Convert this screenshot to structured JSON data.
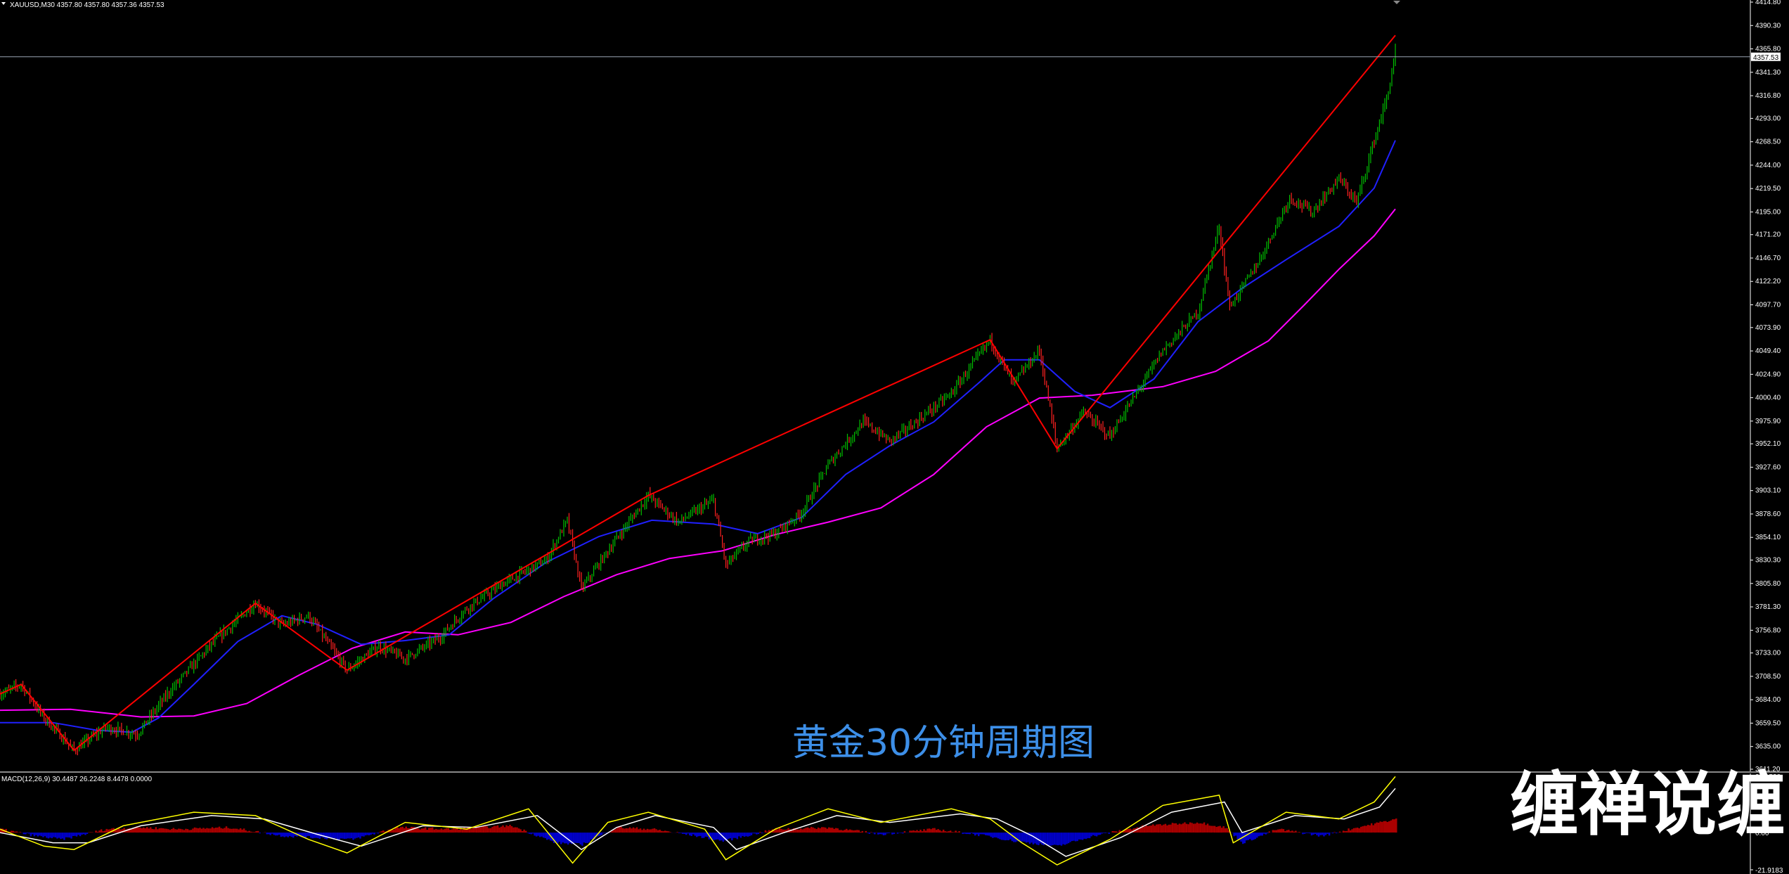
{
  "header": {
    "symbol_info": "XAUUSD,M30  4357.80 4357.80 4357.36 4357.53",
    "caption": "黄金30分钟周期图",
    "watermark": "缠禅说缠"
  },
  "colors": {
    "background": "#000000",
    "bull_candle": "#00c000",
    "bear_candle": "#ff2020",
    "ma_fast": "#2020ff",
    "ma_slow": "#ff00ff",
    "zigzag": "#ff0000",
    "macd_line": "#ffff00",
    "macd_signal": "#ffffff",
    "hist_positive": "#aa0000",
    "hist_negative": "#0000c8",
    "caption_text": "#3d8fe8"
  },
  "chart_data": [
    {
      "type": "line",
      "panel": "price",
      "ylim": [
        3611.2,
        4414.8
      ],
      "yticks": [
        "4414.80",
        "4390.30",
        "4365.80",
        "4341.30",
        "4316.80",
        "4293.00",
        "4268.50",
        "4244.00",
        "4219.50",
        "4195.00",
        "4171.20",
        "4146.70",
        "4122.20",
        "4097.70",
        "4073.90",
        "4049.40",
        "4024.90",
        "4000.40",
        "3975.90",
        "3952.10",
        "3927.60",
        "3903.10",
        "3878.60",
        "3854.10",
        "3830.30",
        "3805.80",
        "3781.30",
        "3756.80",
        "3733.00",
        "3708.50",
        "3684.00",
        "3659.50",
        "3635.00",
        "3611.20"
      ],
      "current_price": "4357.53",
      "current_value": 4357.53,
      "grid": false,
      "x_bars": 1000,
      "zigzag": [
        {
          "x": 0,
          "y": 3690
        },
        {
          "x": 12,
          "y": 3700
        },
        {
          "x": 42,
          "y": 3631
        },
        {
          "x": 145,
          "y": 3785
        },
        {
          "x": 197,
          "y": 3715
        },
        {
          "x": 368,
          "y": 3898
        },
        {
          "x": 562,
          "y": 4061
        },
        {
          "x": 600,
          "y": 3947
        },
        {
          "x": 792,
          "y": 4380
        }
      ],
      "ma_fast": [
        {
          "x": 0,
          "y": 3660
        },
        {
          "x": 30,
          "y": 3660
        },
        {
          "x": 55,
          "y": 3652
        },
        {
          "x": 75,
          "y": 3650
        },
        {
          "x": 90,
          "y": 3665
        },
        {
          "x": 110,
          "y": 3700
        },
        {
          "x": 135,
          "y": 3745
        },
        {
          "x": 160,
          "y": 3772
        },
        {
          "x": 180,
          "y": 3763
        },
        {
          "x": 205,
          "y": 3742
        },
        {
          "x": 230,
          "y": 3746
        },
        {
          "x": 255,
          "y": 3752
        },
        {
          "x": 280,
          "y": 3790
        },
        {
          "x": 310,
          "y": 3828
        },
        {
          "x": 340,
          "y": 3855
        },
        {
          "x": 370,
          "y": 3872
        },
        {
          "x": 405,
          "y": 3868
        },
        {
          "x": 430,
          "y": 3858
        },
        {
          "x": 455,
          "y": 3875
        },
        {
          "x": 480,
          "y": 3920
        },
        {
          "x": 505,
          "y": 3950
        },
        {
          "x": 530,
          "y": 3975
        },
        {
          "x": 555,
          "y": 4015
        },
        {
          "x": 570,
          "y": 4040
        },
        {
          "x": 590,
          "y": 4040
        },
        {
          "x": 610,
          "y": 4007
        },
        {
          "x": 630,
          "y": 3990
        },
        {
          "x": 655,
          "y": 4020
        },
        {
          "x": 680,
          "y": 4080
        },
        {
          "x": 705,
          "y": 4115
        },
        {
          "x": 730,
          "y": 4145
        },
        {
          "x": 760,
          "y": 4180
        },
        {
          "x": 780,
          "y": 4220
        },
        {
          "x": 792,
          "y": 4270
        }
      ],
      "ma_slow": [
        {
          "x": 0,
          "y": 3673
        },
        {
          "x": 40,
          "y": 3674
        },
        {
          "x": 80,
          "y": 3666
        },
        {
          "x": 110,
          "y": 3667
        },
        {
          "x": 140,
          "y": 3680
        },
        {
          "x": 170,
          "y": 3710
        },
        {
          "x": 200,
          "y": 3738
        },
        {
          "x": 230,
          "y": 3755
        },
        {
          "x": 260,
          "y": 3752
        },
        {
          "x": 290,
          "y": 3765
        },
        {
          "x": 320,
          "y": 3792
        },
        {
          "x": 350,
          "y": 3815
        },
        {
          "x": 380,
          "y": 3832
        },
        {
          "x": 410,
          "y": 3840
        },
        {
          "x": 440,
          "y": 3857
        },
        {
          "x": 470,
          "y": 3870
        },
        {
          "x": 500,
          "y": 3885
        },
        {
          "x": 530,
          "y": 3920
        },
        {
          "x": 560,
          "y": 3970
        },
        {
          "x": 590,
          "y": 4000
        },
        {
          "x": 620,
          "y": 4003
        },
        {
          "x": 660,
          "y": 4012
        },
        {
          "x": 690,
          "y": 4028
        },
        {
          "x": 720,
          "y": 4060
        },
        {
          "x": 740,
          "y": 4097
        },
        {
          "x": 760,
          "y": 4135
        },
        {
          "x": 780,
          "y": 4170
        },
        {
          "x": 792,
          "y": 4198
        }
      ],
      "price_path": [
        {
          "x": 0,
          "y": 3690
        },
        {
          "x": 12,
          "y": 3700
        },
        {
          "x": 25,
          "y": 3665
        },
        {
          "x": 42,
          "y": 3631
        },
        {
          "x": 60,
          "y": 3655
        },
        {
          "x": 78,
          "y": 3648
        },
        {
          "x": 95,
          "y": 3690
        },
        {
          "x": 120,
          "y": 3742
        },
        {
          "x": 145,
          "y": 3785
        },
        {
          "x": 160,
          "y": 3762
        },
        {
          "x": 175,
          "y": 3772
        },
        {
          "x": 197,
          "y": 3715
        },
        {
          "x": 215,
          "y": 3740
        },
        {
          "x": 230,
          "y": 3727
        },
        {
          "x": 250,
          "y": 3750
        },
        {
          "x": 265,
          "y": 3780
        },
        {
          "x": 285,
          "y": 3805
        },
        {
          "x": 310,
          "y": 3830
        },
        {
          "x": 322,
          "y": 3872
        },
        {
          "x": 330,
          "y": 3800
        },
        {
          "x": 345,
          "y": 3840
        },
        {
          "x": 368,
          "y": 3898
        },
        {
          "x": 385,
          "y": 3870
        },
        {
          "x": 405,
          "y": 3893
        },
        {
          "x": 412,
          "y": 3825
        },
        {
          "x": 425,
          "y": 3850
        },
        {
          "x": 440,
          "y": 3858
        },
        {
          "x": 455,
          "y": 3880
        },
        {
          "x": 470,
          "y": 3930
        },
        {
          "x": 490,
          "y": 3975
        },
        {
          "x": 505,
          "y": 3955
        },
        {
          "x": 520,
          "y": 3975
        },
        {
          "x": 540,
          "y": 4005
        },
        {
          "x": 562,
          "y": 4061
        },
        {
          "x": 575,
          "y": 4015
        },
        {
          "x": 590,
          "y": 4050
        },
        {
          "x": 600,
          "y": 3947
        },
        {
          "x": 615,
          "y": 3985
        },
        {
          "x": 630,
          "y": 3960
        },
        {
          "x": 645,
          "y": 4005
        },
        {
          "x": 660,
          "y": 4050
        },
        {
          "x": 680,
          "y": 4090
        },
        {
          "x": 692,
          "y": 4180
        },
        {
          "x": 698,
          "y": 4095
        },
        {
          "x": 715,
          "y": 4145
        },
        {
          "x": 732,
          "y": 4210
        },
        {
          "x": 745,
          "y": 4195
        },
        {
          "x": 760,
          "y": 4230
        },
        {
          "x": 770,
          "y": 4205
        },
        {
          "x": 780,
          "y": 4270
        },
        {
          "x": 788,
          "y": 4320
        },
        {
          "x": 792,
          "y": 4365
        }
      ]
    },
    {
      "type": "line",
      "panel": "macd",
      "title": "MACD(12,26,9) 30.4487 26.2248 8.4478 0.0000",
      "ylim": [
        -21.9183,
        33.1538
      ],
      "yticks": [
        "33.1538",
        "0.00",
        "-21.9183"
      ],
      "grid": false,
      "x_bars": 1000,
      "macd_line": [
        {
          "x": 0,
          "y": 2
        },
        {
          "x": 25,
          "y": -8
        },
        {
          "x": 42,
          "y": -10
        },
        {
          "x": 70,
          "y": 4
        },
        {
          "x": 110,
          "y": 12
        },
        {
          "x": 145,
          "y": 10
        },
        {
          "x": 175,
          "y": -4
        },
        {
          "x": 197,
          "y": -12
        },
        {
          "x": 230,
          "y": 6
        },
        {
          "x": 265,
          "y": 2
        },
        {
          "x": 300,
          "y": 14
        },
        {
          "x": 325,
          "y": -18
        },
        {
          "x": 345,
          "y": 6
        },
        {
          "x": 368,
          "y": 12
        },
        {
          "x": 400,
          "y": 2
        },
        {
          "x": 412,
          "y": -16
        },
        {
          "x": 440,
          "y": 2
        },
        {
          "x": 470,
          "y": 14
        },
        {
          "x": 500,
          "y": 6
        },
        {
          "x": 540,
          "y": 14
        },
        {
          "x": 562,
          "y": 8
        },
        {
          "x": 580,
          "y": -6
        },
        {
          "x": 600,
          "y": -19
        },
        {
          "x": 630,
          "y": -4
        },
        {
          "x": 660,
          "y": 16
        },
        {
          "x": 692,
          "y": 22
        },
        {
          "x": 700,
          "y": -6
        },
        {
          "x": 730,
          "y": 12
        },
        {
          "x": 760,
          "y": 8
        },
        {
          "x": 780,
          "y": 18
        },
        {
          "x": 792,
          "y": 33
        }
      ],
      "signal_line": [
        {
          "x": 0,
          "y": 0
        },
        {
          "x": 30,
          "y": -6
        },
        {
          "x": 50,
          "y": -6
        },
        {
          "x": 80,
          "y": 4
        },
        {
          "x": 120,
          "y": 10
        },
        {
          "x": 150,
          "y": 8
        },
        {
          "x": 180,
          "y": -1
        },
        {
          "x": 205,
          "y": -8
        },
        {
          "x": 240,
          "y": 4
        },
        {
          "x": 270,
          "y": 3
        },
        {
          "x": 305,
          "y": 10
        },
        {
          "x": 330,
          "y": -10
        },
        {
          "x": 350,
          "y": 3
        },
        {
          "x": 372,
          "y": 10
        },
        {
          "x": 405,
          "y": 3
        },
        {
          "x": 418,
          "y": -10
        },
        {
          "x": 445,
          "y": 0
        },
        {
          "x": 475,
          "y": 10
        },
        {
          "x": 505,
          "y": 6
        },
        {
          "x": 545,
          "y": 11
        },
        {
          "x": 566,
          "y": 8
        },
        {
          "x": 586,
          "y": -2
        },
        {
          "x": 605,
          "y": -14
        },
        {
          "x": 636,
          "y": -3
        },
        {
          "x": 665,
          "y": 12
        },
        {
          "x": 695,
          "y": 18
        },
        {
          "x": 705,
          "y": 0
        },
        {
          "x": 735,
          "y": 10
        },
        {
          "x": 763,
          "y": 8
        },
        {
          "x": 783,
          "y": 15
        },
        {
          "x": 792,
          "y": 26
        }
      ],
      "histogram": [
        {
          "x": 0,
          "y": 2
        },
        {
          "x": 20,
          "y": -2
        },
        {
          "x": 35,
          "y": -4
        },
        {
          "x": 60,
          "y": 2
        },
        {
          "x": 80,
          "y": 3
        },
        {
          "x": 100,
          "y": 2
        },
        {
          "x": 130,
          "y": 3
        },
        {
          "x": 160,
          "y": -2
        },
        {
          "x": 180,
          "y": -3
        },
        {
          "x": 200,
          "y": -4
        },
        {
          "x": 225,
          "y": 3
        },
        {
          "x": 255,
          "y": 2
        },
        {
          "x": 290,
          "y": 4
        },
        {
          "x": 315,
          "y": -6
        },
        {
          "x": 330,
          "y": -7
        },
        {
          "x": 350,
          "y": 3
        },
        {
          "x": 370,
          "y": 2
        },
        {
          "x": 395,
          "y": -2
        },
        {
          "x": 410,
          "y": -5
        },
        {
          "x": 440,
          "y": 2
        },
        {
          "x": 470,
          "y": 3
        },
        {
          "x": 500,
          "y": -1
        },
        {
          "x": 530,
          "y": 2
        },
        {
          "x": 560,
          "y": -2
        },
        {
          "x": 575,
          "y": -5
        },
        {
          "x": 600,
          "y": -8
        },
        {
          "x": 620,
          "y": -2
        },
        {
          "x": 650,
          "y": 4
        },
        {
          "x": 680,
          "y": 6
        },
        {
          "x": 695,
          "y": 3
        },
        {
          "x": 705,
          "y": -6
        },
        {
          "x": 725,
          "y": 2
        },
        {
          "x": 750,
          "y": -2
        },
        {
          "x": 770,
          "y": 3
        },
        {
          "x": 792,
          "y": 8
        }
      ]
    }
  ]
}
